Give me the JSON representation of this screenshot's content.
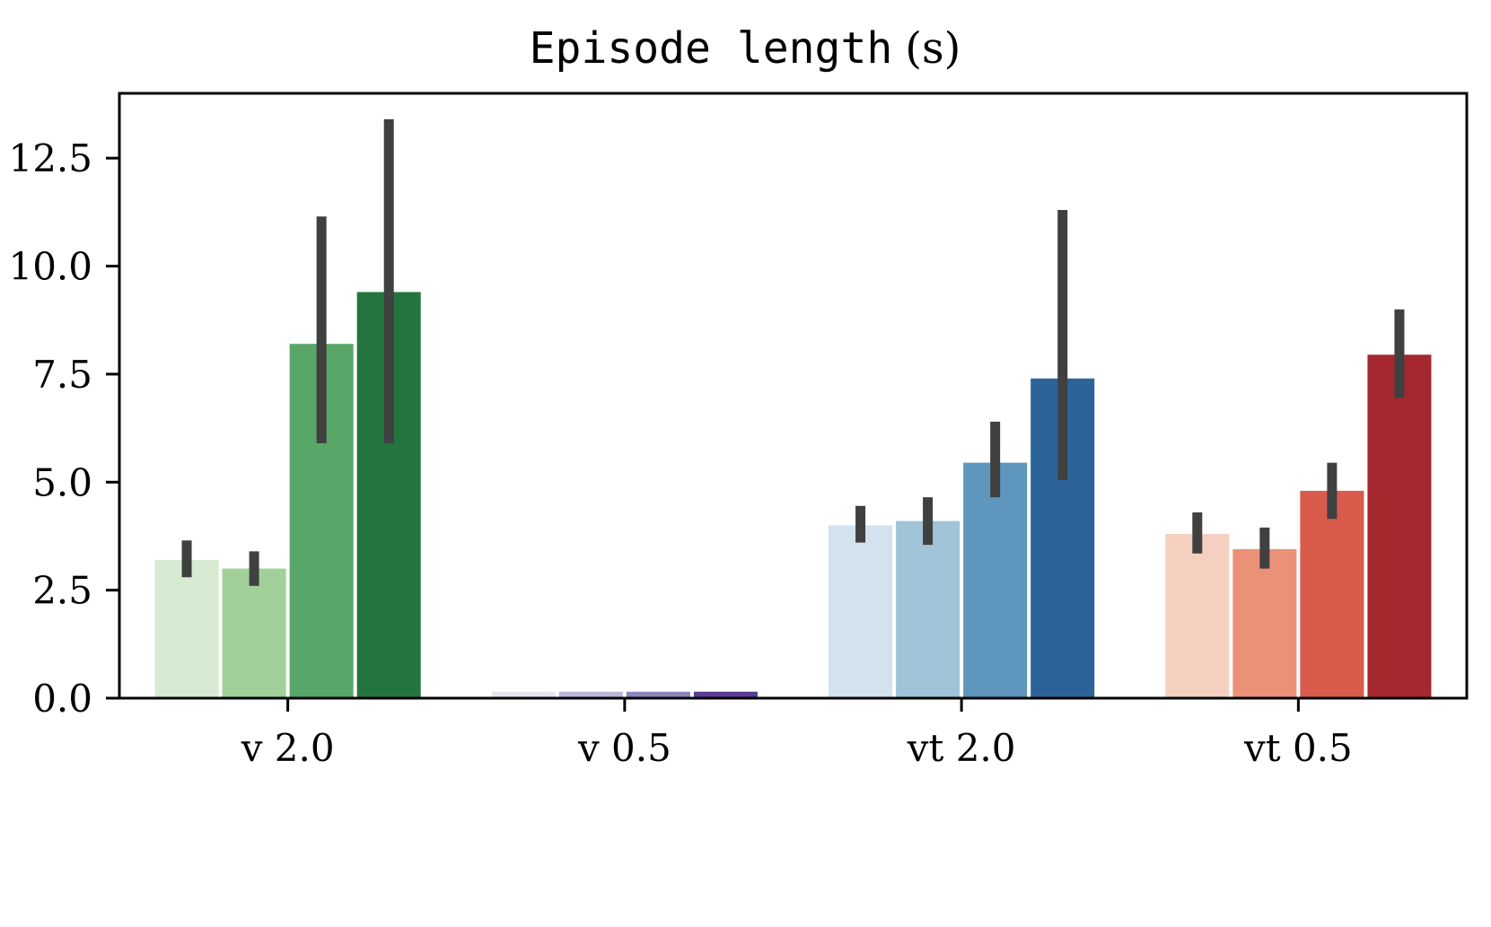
{
  "chart_data": {
    "type": "bar",
    "title": "Episode length",
    "title_unit": "(s)",
    "categories": [
      "v 2.0",
      "v 0.5",
      "vt 2.0",
      "vt 0.5"
    ],
    "ylim": [
      0,
      14
    ],
    "yticks": [
      "0.0",
      "2.5",
      "5.0",
      "7.5",
      "10.0",
      "12.5"
    ],
    "ytick_values": [
      0,
      2.5,
      5.0,
      7.5,
      10.0,
      12.5
    ],
    "grid": false,
    "error_bar_color": "#404040",
    "groups": [
      {
        "category": "v 2.0",
        "colors": [
          "#d6ebd2",
          "#a1d199",
          "#58a668",
          "#23743e"
        ],
        "values": [
          3.2,
          3.0,
          8.2,
          9.4
        ],
        "err_low": [
          2.8,
          2.6,
          5.9,
          5.9
        ],
        "err_high": [
          3.65,
          3.4,
          11.15,
          13.4
        ]
      },
      {
        "category": "v 0.5",
        "colors": [
          "#e6e5f0",
          "#b9b7d9",
          "#8987bc",
          "#5b3c95"
        ],
        "values": [
          0.15,
          0.15,
          0.15,
          0.15
        ],
        "err_low": [
          0.15,
          0.15,
          0.15,
          0.15
        ],
        "err_high": [
          0.15,
          0.15,
          0.15,
          0.15
        ]
      },
      {
        "category": "vt 2.0",
        "colors": [
          "#d4e2ef",
          "#a1c4d9",
          "#5e96bd",
          "#2c6499"
        ],
        "values": [
          4.0,
          4.1,
          5.45,
          7.4
        ],
        "err_low": [
          3.6,
          3.55,
          4.65,
          5.05
        ],
        "err_high": [
          4.45,
          4.65,
          6.4,
          11.3
        ]
      },
      {
        "category": "vt 0.5",
        "colors": [
          "#f5d0c0",
          "#eb9178",
          "#d95b4b",
          "#a4282e"
        ],
        "values": [
          3.8,
          3.45,
          4.8,
          7.95
        ],
        "err_low": [
          3.35,
          3.0,
          4.15,
          6.95
        ],
        "err_high": [
          4.3,
          3.95,
          5.45,
          9.0
        ]
      }
    ]
  }
}
